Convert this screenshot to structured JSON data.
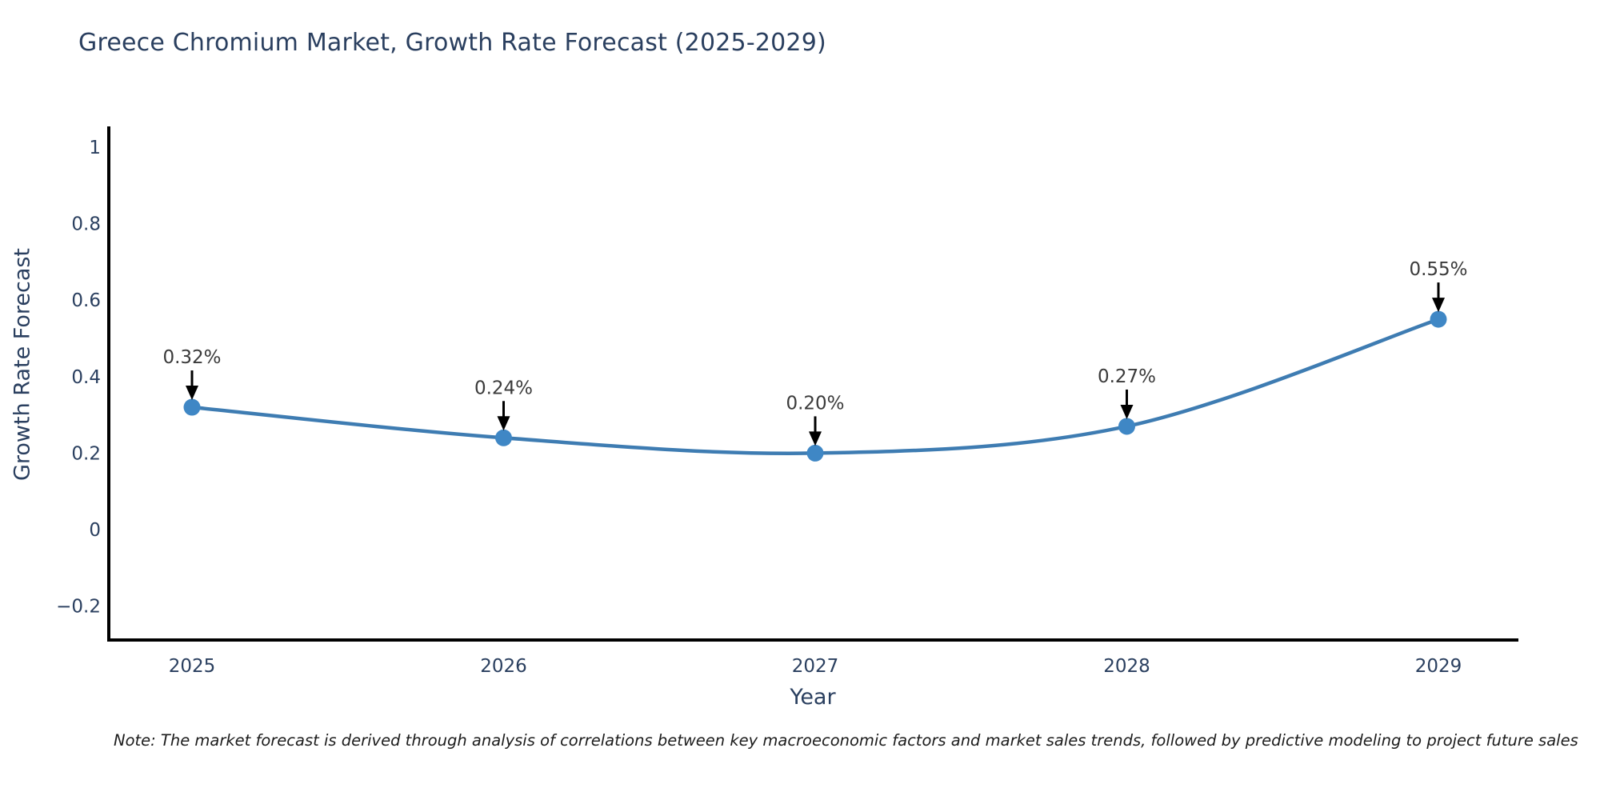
{
  "title": "Greece Chromium Market, Growth Rate Forecast (2025-2029)",
  "note": "Note: The market forecast is derived through analysis of correlations between key macroeconomic factors and market sales trends, followed by predictive modeling to project future sales",
  "chart_data": {
    "type": "line",
    "title": "Greece Chromium Market, Growth Rate Forecast (2025-2029)",
    "xlabel": "Year",
    "ylabel": "Growth Rate Forecast",
    "categories": [
      "2025",
      "2026",
      "2027",
      "2028",
      "2029"
    ],
    "series": [
      {
        "name": "Growth Rate Forecast",
        "values": [
          0.32,
          0.24,
          0.2,
          0.27,
          0.55
        ]
      }
    ],
    "point_labels": [
      "0.32%",
      "0.24%",
      "0.20%",
      "0.27%",
      "0.55%"
    ],
    "yticks": {
      "labels": [
        "1",
        "0.8",
        "0.6",
        "0.4",
        "0.2",
        "0",
        "−0.2"
      ],
      "values": [
        1,
        0.8,
        0.6,
        0.4,
        0.2,
        0,
        -0.2
      ]
    },
    "ylim": [
      -0.3,
      1.05
    ],
    "grid": false,
    "legend_position": "none",
    "line_shape": "spline",
    "colors": {
      "line": "#3e7cb2",
      "marker": "#3f87c5",
      "axis": "#000000",
      "tick_text": "#2a3f5f",
      "annotation_text": "#3a3a3a",
      "arrow": "#000000",
      "background": "#ffffff"
    }
  }
}
